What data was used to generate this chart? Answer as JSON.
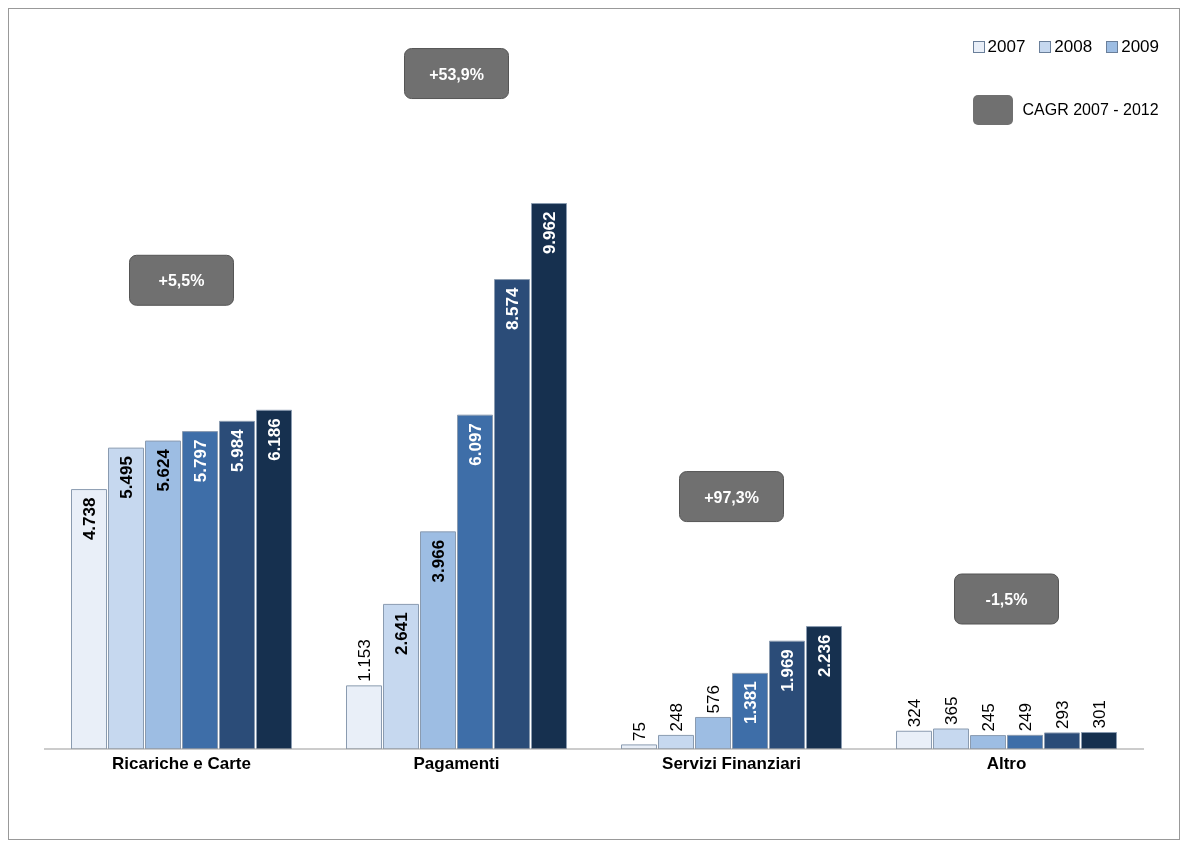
{
  "chart_data": {
    "type": "bar",
    "categories": [
      "Ricariche e Carte",
      "Pagamenti",
      "Servizi Finanziari",
      "Altro"
    ],
    "series": [
      {
        "name": "2007",
        "color": "#e9eff8",
        "values": [
          4738,
          1153,
          75,
          324
        ],
        "value_labels": [
          "4.738",
          "1.153",
          "75",
          "324"
        ]
      },
      {
        "name": "2008",
        "color": "#c6d8ef",
        "values": [
          5495,
          2641,
          248,
          365
        ],
        "value_labels": [
          "5.495",
          "2.641",
          "248",
          "365"
        ]
      },
      {
        "name": "2009",
        "color": "#9dbde3",
        "values": [
          5624,
          3966,
          576,
          245
        ],
        "value_labels": [
          "5.624",
          "3.966",
          "576",
          "245"
        ]
      },
      {
        "color": "#3e6ea8",
        "values": [
          5797,
          6097,
          1381,
          249
        ],
        "value_labels": [
          "5.797",
          "6.097",
          "1.381",
          "249"
        ]
      },
      {
        "color": "#2b4c78",
        "values": [
          5984,
          8574,
          1969,
          293
        ],
        "value_labels": [
          "5.984",
          "8.574",
          "1.969",
          "293"
        ]
      },
      {
        "color": "#16304f",
        "values": [
          6186,
          9962,
          2236,
          301
        ],
        "value_labels": [
          "6.186",
          "9.962",
          "2.236",
          "301"
        ]
      }
    ],
    "annotations": [
      "CAGR 2007 - 2012",
      "+5,5%",
      "+53,9%",
      "+97,3%",
      "-1,5%"
    ],
    "legend": "top right"
  }
}
